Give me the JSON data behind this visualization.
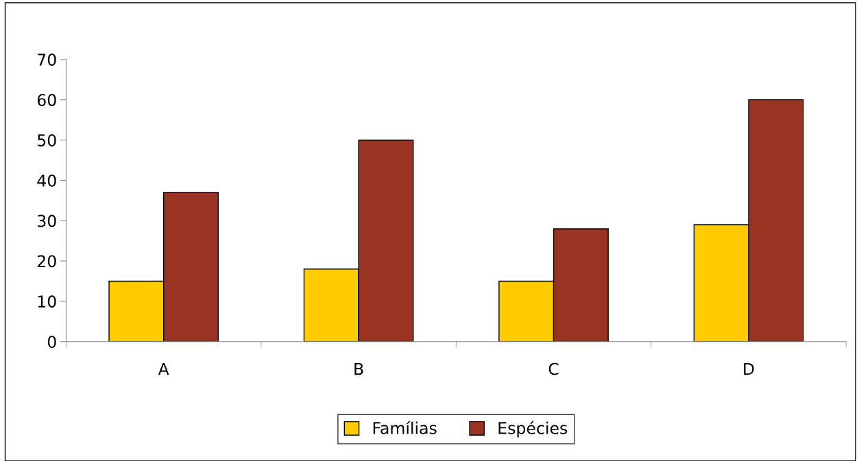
{
  "chart_data": {
    "type": "bar",
    "categories": [
      "A",
      "B",
      "C",
      "D"
    ],
    "series": [
      {
        "name": "Famílias",
        "color": "#ffcc00",
        "values": [
          15,
          18,
          15,
          29
        ]
      },
      {
        "name": "Espécies",
        "color": "#993322",
        "values": [
          37,
          50,
          28,
          60
        ]
      }
    ],
    "ylim": [
      0,
      70
    ],
    "yticks": [
      0,
      10,
      20,
      30,
      40,
      50,
      60,
      70
    ],
    "grid": false,
    "legend": "bottom"
  }
}
